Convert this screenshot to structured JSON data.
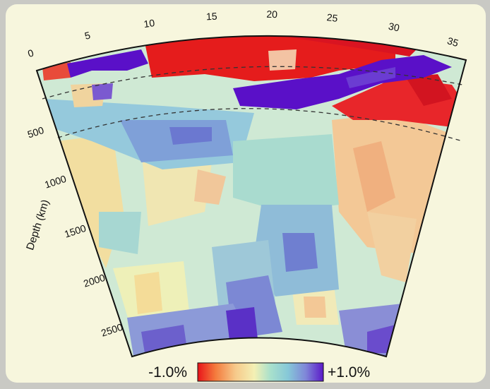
{
  "figure": {
    "angle_ticks": [
      "0",
      "5",
      "10",
      "15",
      "20",
      "25",
      "30",
      "35"
    ],
    "depth_ticks": [
      "500",
      "1000",
      "1500",
      "2000",
      "2500"
    ],
    "depth_axis_label": "Depth (km)",
    "colorbar": {
      "min_label": "-1.0%",
      "max_label": "+1.0%",
      "colors": [
        "#e8141a",
        "#f47a3c",
        "#f6c98a",
        "#f4f0b4",
        "#a8e0cc",
        "#86c8d8",
        "#7f86d8",
        "#5b19c8"
      ]
    },
    "colors": {
      "fast": "#5a10c8",
      "slow": "#e51c1c",
      "background": "#f7f6dd"
    }
  }
}
